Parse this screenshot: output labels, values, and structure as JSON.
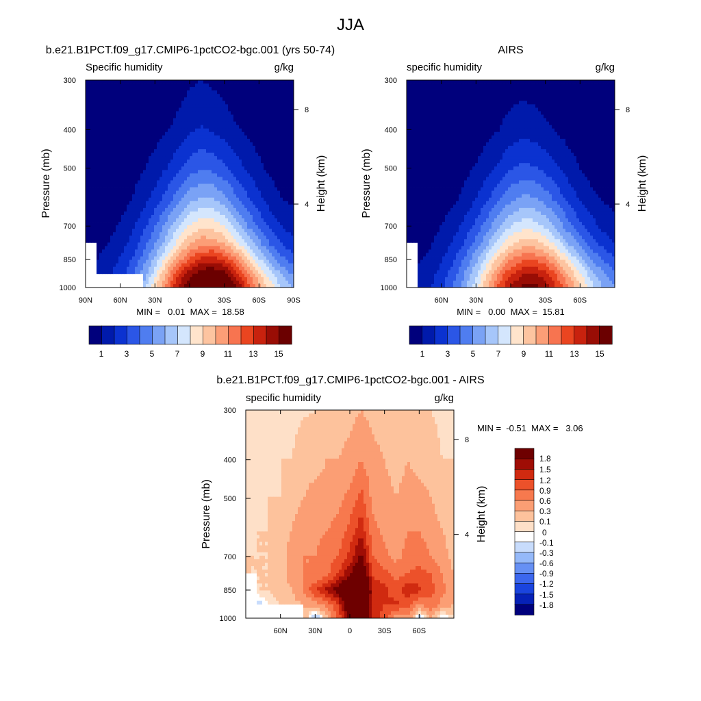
{
  "figure": {
    "title": "JJA"
  },
  "palettes": {
    "humidity": [
      "#00007c",
      "#001aab",
      "#0b32d0",
      "#2b56e6",
      "#4f7df0",
      "#7aa2f5",
      "#a6c6fa",
      "#d4e6fd",
      "#ffe4cc",
      "#fdc4a0",
      "#fc9e77",
      "#f77450",
      "#ea4520",
      "#c8220e",
      "#990d05",
      "#6b0000"
    ],
    "difference": [
      "#00007c",
      "#0621b7",
      "#1a44de",
      "#3c67ee",
      "#6690f4",
      "#95b9f9",
      "#c8dcfc",
      "#ffffff",
      "#fee0c8",
      "#fdc29c",
      "#fb9e74",
      "#f7794e",
      "#ec512a",
      "#d02a10",
      "#9f0d05",
      "#6e0000"
    ]
  },
  "panels": [
    {
      "id": "model",
      "title": "b.e21.B1PCT.f09_g17.CMIP6-1pctCO2-bgc.001 (yrs 50-74)",
      "left_label": "Specific humidity",
      "right_label": "g/kg",
      "ylabel": "Pressure (mb)",
      "y2label": "Height (km)",
      "stats": "MIN =   0.01  MAX =  18.58",
      "colorbar_labels": [
        "1",
        "3",
        "5",
        "7",
        "9",
        "11",
        "13",
        "15"
      ]
    },
    {
      "id": "obs",
      "title": "AIRS",
      "left_label": "specific humidity",
      "right_label": "g/kg",
      "ylabel": "Pressure (mb)",
      "y2label": "Height (km)",
      "stats": "MIN =   0.00  MAX =  15.81",
      "colorbar_labels": [
        "1",
        "3",
        "5",
        "7",
        "9",
        "11",
        "13",
        "15"
      ]
    },
    {
      "id": "diff",
      "title": "b.e21.B1PCT.f09_g17.CMIP6-1pctCO2-bgc.001 - AIRS",
      "left_label": "specific humidity",
      "right_label": "g/kg",
      "ylabel": "Pressure (mb)",
      "y2label": "Height (km)",
      "stats": "MIN =  -0.51  MAX =   3.06",
      "colorbar_labels": [
        "1.8",
        "1.5",
        "1.2",
        "0.9",
        "0.6",
        "0.3",
        "0.1",
        "0",
        "-0.1",
        "-0.3",
        "-0.6",
        "-0.9",
        "-1.2",
        "-1.5",
        "-1.8"
      ]
    }
  ],
  "chart_data": [
    {
      "type": "heatmap",
      "title": "b.e21.B1PCT.f09_g17.CMIP6-1pctCO2-bgc.001 (yrs 50-74)",
      "subtitle": "Specific humidity",
      "units": "g/kg",
      "xlabel": "",
      "ylabel": "Pressure (mb)",
      "y2label": "Height (km)",
      "x_ticks": [
        "90N",
        "60N",
        "30N",
        "0",
        "30S",
        "60S",
        "90S"
      ],
      "y_ticks": [
        "300",
        "400",
        "500",
        "700",
        "850",
        "1000"
      ],
      "y2_ticks": [
        "8",
        "4"
      ],
      "xlim": [
        90,
        -90
      ],
      "ylim": [
        1000,
        300
      ],
      "y_scale": "log",
      "levels": [
        1,
        2,
        3,
        4,
        5,
        6,
        7,
        8,
        9,
        10,
        11,
        12,
        13,
        14,
        15
      ],
      "min": 0.01,
      "max": 18.58,
      "x": [
        -90,
        -80,
        -70,
        -60,
        -50,
        -40,
        -30,
        -20,
        -10,
        0,
        10,
        20,
        30,
        40,
        50,
        60,
        70,
        80,
        90
      ],
      "p": [
        1000,
        925,
        850,
        775,
        700,
        600,
        500,
        400,
        300
      ],
      "values": [
        [
          6.0,
          7.0,
          8.5,
          10.5,
          12.8,
          15.4,
          17.6,
          18.3,
          17.8,
          16.4,
          14.2,
          11.5,
          8.7,
          6.4,
          null,
          null,
          null,
          null,
          null
        ],
        [
          4.8,
          5.8,
          7.3,
          9.2,
          11.2,
          13.5,
          15.5,
          16.2,
          15.8,
          14.6,
          12.6,
          10.2,
          7.6,
          5.4,
          3.7,
          2.6,
          1.8,
          1.3,
          null
        ],
        [
          3.5,
          4.3,
          5.6,
          7.2,
          9.0,
          11.1,
          12.8,
          13.5,
          13.3,
          12.2,
          10.5,
          8.4,
          6.3,
          4.5,
          3.0,
          2.1,
          1.4,
          1.0,
          null
        ],
        [
          2.3,
          2.9,
          3.9,
          5.3,
          6.8,
          8.5,
          9.9,
          10.7,
          10.7,
          9.8,
          8.4,
          6.6,
          4.9,
          3.5,
          2.3,
          1.6,
          1.0,
          0.7,
          0.5
        ],
        [
          1.5,
          1.9,
          2.7,
          3.8,
          5.0,
          6.5,
          7.9,
          8.6,
          8.8,
          8.1,
          6.9,
          5.4,
          3.9,
          2.7,
          1.7,
          1.1,
          0.7,
          0.5,
          0.4
        ],
        [
          0.8,
          1.0,
          1.5,
          2.3,
          3.2,
          4.3,
          5.4,
          6.1,
          6.2,
          5.7,
          4.6,
          3.5,
          2.4,
          1.6,
          1.0,
          0.6,
          0.4,
          0.3,
          0.2
        ],
        [
          0.4,
          0.5,
          0.8,
          1.2,
          1.8,
          2.5,
          3.2,
          3.7,
          3.9,
          3.5,
          2.7,
          2.0,
          1.4,
          0.9,
          0.6,
          0.4,
          0.3,
          0.2,
          0.1
        ],
        [
          0.2,
          0.2,
          0.3,
          0.5,
          0.8,
          1.1,
          1.5,
          1.9,
          2.1,
          1.8,
          1.3,
          0.9,
          0.6,
          0.4,
          0.3,
          0.2,
          0.1,
          0.1,
          0.1
        ],
        [
          0.05,
          0.07,
          0.1,
          0.15,
          0.25,
          0.4,
          0.6,
          0.8,
          1.0,
          0.8,
          0.5,
          0.3,
          0.2,
          0.15,
          0.1,
          0.07,
          0.05,
          0.03,
          0.01
        ]
      ]
    },
    {
      "type": "heatmap",
      "title": "AIRS",
      "subtitle": "specific humidity",
      "units": "g/kg",
      "xlabel": "",
      "ylabel": "Pressure (mb)",
      "y2label": "Height (km)",
      "x_ticks": [
        "60N",
        "30N",
        "0",
        "30S",
        "60S"
      ],
      "y_ticks": [
        "300",
        "400",
        "500",
        "700",
        "850",
        "1000"
      ],
      "y2_ticks": [
        "8",
        "4"
      ],
      "xlim": [
        90,
        -90
      ],
      "ylim": [
        1000,
        300
      ],
      "y_scale": "log",
      "levels": [
        1,
        2,
        3,
        4,
        5,
        6,
        7,
        8,
        9,
        10,
        11,
        12,
        13,
        14,
        15
      ],
      "min": 0.0,
      "max": 15.81,
      "x": [
        -90,
        -80,
        -70,
        -60,
        -50,
        -40,
        -30,
        -20,
        -10,
        0,
        10,
        20,
        30,
        40,
        50,
        60,
        70,
        80,
        90
      ],
      "p": [
        1000,
        925,
        850,
        775,
        700,
        600,
        500,
        400,
        300
      ],
      "values": [
        [
          5.0,
          6.0,
          7.4,
          9.2,
          11.1,
          13.0,
          14.6,
          15.4,
          15.2,
          14.2,
          12.4,
          10.0,
          7.6,
          5.6,
          4.0,
          2.8,
          1.9,
          1.3,
          null
        ],
        [
          4.2,
          5.1,
          6.4,
          8.1,
          9.9,
          11.8,
          13.4,
          14.1,
          13.9,
          12.9,
          11.2,
          9.1,
          6.8,
          5.0,
          3.5,
          2.4,
          1.6,
          1.1,
          null
        ],
        [
          3.1,
          3.9,
          5.0,
          6.5,
          8.1,
          9.8,
          11.2,
          11.9,
          11.8,
          10.9,
          9.4,
          7.6,
          5.7,
          4.1,
          2.8,
          1.9,
          1.2,
          0.9,
          null
        ],
        [
          2.0,
          2.6,
          3.5,
          4.7,
          6.0,
          7.5,
          8.8,
          9.5,
          9.5,
          8.8,
          7.5,
          5.9,
          4.4,
          3.1,
          2.1,
          1.4,
          0.9,
          0.6,
          0.5
        ],
        [
          1.3,
          1.7,
          2.4,
          3.3,
          4.4,
          5.7,
          6.8,
          7.5,
          7.6,
          7.0,
          5.9,
          4.6,
          3.3,
          2.3,
          1.5,
          1.0,
          0.6,
          0.4,
          0.3
        ],
        [
          0.7,
          0.9,
          1.3,
          1.9,
          2.7,
          3.7,
          4.6,
          5.2,
          5.3,
          4.8,
          3.9,
          2.9,
          2.0,
          1.3,
          0.8,
          0.5,
          0.3,
          0.2,
          0.2
        ],
        [
          0.3,
          0.4,
          0.6,
          1.0,
          1.5,
          2.1,
          2.7,
          3.1,
          3.2,
          2.9,
          2.2,
          1.6,
          1.1,
          0.7,
          0.4,
          0.3,
          0.2,
          0.1,
          0.1
        ],
        [
          0.1,
          0.2,
          0.3,
          0.4,
          0.6,
          0.9,
          1.2,
          1.5,
          1.6,
          1.4,
          1.0,
          0.7,
          0.4,
          0.3,
          0.2,
          0.1,
          0.1,
          0.05,
          0.03
        ],
        [
          0.02,
          0.04,
          0.06,
          0.1,
          0.15,
          0.25,
          0.4,
          0.5,
          0.6,
          0.5,
          0.3,
          0.2,
          0.1,
          0.07,
          0.05,
          0.03,
          0.02,
          0.01,
          0.0
        ]
      ]
    },
    {
      "type": "heatmap",
      "title": "b.e21.B1PCT.f09_g17.CMIP6-1pctCO2-bgc.001 - AIRS",
      "subtitle": "specific humidity",
      "units": "g/kg",
      "xlabel": "",
      "ylabel": "Pressure (mb)",
      "y2label": "Height (km)",
      "x_ticks": [
        "60N",
        "30N",
        "0",
        "30S",
        "60S"
      ],
      "y_ticks": [
        "300",
        "400",
        "500",
        "700",
        "850",
        "1000"
      ],
      "y2_ticks": [
        "8",
        "4"
      ],
      "xlim": [
        90,
        -90
      ],
      "ylim": [
        1000,
        300
      ],
      "y_scale": "log",
      "levels": [
        -1.8,
        -1.5,
        -1.2,
        -0.9,
        -0.6,
        -0.3,
        -0.1,
        0,
        0.1,
        0.3,
        0.6,
        0.9,
        1.2,
        1.5,
        1.8
      ],
      "min": -0.51,
      "max": 3.06,
      "x": [
        -90,
        -80,
        -70,
        -60,
        -50,
        -40,
        -30,
        -20,
        -10,
        0,
        10,
        20,
        30,
        40,
        50,
        60,
        70,
        80,
        90
      ],
      "p": [
        1000,
        925,
        850,
        775,
        700,
        600,
        500,
        400,
        300
      ],
      "values": [
        [
          0.1,
          -0.2,
          0.3,
          -0.3,
          0.5,
          0.3,
          1.0,
          1.5,
          2.2,
          1.9,
          1.0,
          0.2,
          -0.4,
          0.3,
          null,
          null,
          null,
          null,
          null
        ],
        [
          0.3,
          0.5,
          0.8,
          0.6,
          1.0,
          1.3,
          1.2,
          1.4,
          2.6,
          2.4,
          1.2,
          0.7,
          0.4,
          0.3,
          0.2,
          0.1,
          0.0,
          -0.2,
          null
        ],
        [
          0.4,
          0.7,
          1.0,
          1.3,
          1.4,
          1.0,
          1.3,
          1.5,
          3.0,
          2.6,
          2.0,
          1.6,
          1.2,
          0.6,
          0.3,
          0.2,
          0.1,
          0.1,
          null
        ],
        [
          0.3,
          0.6,
          0.9,
          1.0,
          0.9,
          0.8,
          1.0,
          1.1,
          2.4,
          1.8,
          1.2,
          0.8,
          0.6,
          0.6,
          0.4,
          0.2,
          0.1,
          0.1,
          0.1
        ],
        [
          0.2,
          0.4,
          0.6,
          0.8,
          0.7,
          0.5,
          0.7,
          0.9,
          1.9,
          1.3,
          0.9,
          0.8,
          0.6,
          0.6,
          0.4,
          0.2,
          0.1,
          0.1,
          0.1
        ],
        [
          0.2,
          0.3,
          0.4,
          0.6,
          0.6,
          0.4,
          0.5,
          0.7,
          1.4,
          1.0,
          0.7,
          0.6,
          0.5,
          0.5,
          0.3,
          0.2,
          0.1,
          0.1,
          0.05
        ],
        [
          0.1,
          0.2,
          0.3,
          0.4,
          0.4,
          0.3,
          0.4,
          0.5,
          1.0,
          0.7,
          0.5,
          0.4,
          0.4,
          0.3,
          0.2,
          0.1,
          0.1,
          0.05,
          0.05
        ],
        [
          0.1,
          0.1,
          0.2,
          0.2,
          0.3,
          0.2,
          0.3,
          0.4,
          0.6,
          0.4,
          0.3,
          0.3,
          0.2,
          0.2,
          0.1,
          0.1,
          0.05,
          0.05,
          0.03
        ],
        [
          0.05,
          0.05,
          0.1,
          0.1,
          0.1,
          0.1,
          0.15,
          0.2,
          0.3,
          0.2,
          0.15,
          0.1,
          0.1,
          0.08,
          0.05,
          0.04,
          0.03,
          0.02,
          0.02
        ]
      ]
    }
  ]
}
